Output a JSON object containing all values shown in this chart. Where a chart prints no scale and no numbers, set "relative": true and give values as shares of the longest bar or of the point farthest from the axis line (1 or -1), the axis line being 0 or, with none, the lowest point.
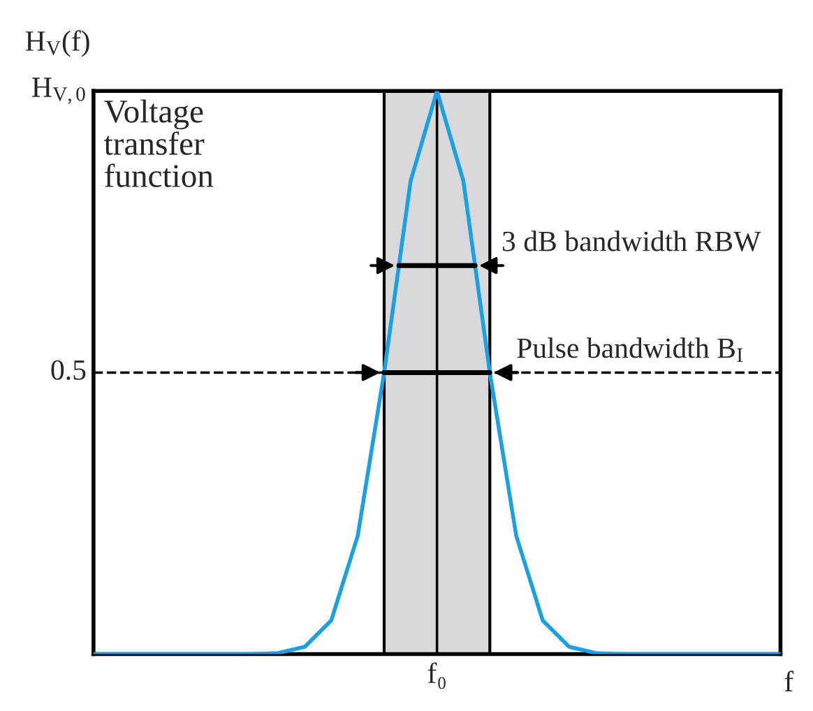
{
  "chart_data": {
    "type": "line",
    "xlabel": "f",
    "ylabel": "H$_{V}$(f)",
    "categories": [
      null,
      null,
      null,
      null,
      null,
      null,
      null,
      null,
      null,
      null,
      null,
      null,
      null,
      null,
      null,
      null,
      null,
      null,
      null,
      null,
      null,
      null,
      null,
      null,
      null,
      null,
      null
    ],
    "series": [
      {
        "color": "#1ba1e2",
        "values": [
          0,
          0,
          0,
          0,
          0,
          0,
          0,
          0.002,
          0.013,
          0.06,
          0.21,
          0.5,
          0.84,
          1,
          0.84,
          0.5,
          0.21,
          0.06,
          0.013,
          0.002,
          0,
          0,
          0,
          0,
          0,
          0,
          0
        ]
      }
    ],
    "relative": true,
    "ref_lines": [
      {
        "axis": "y",
        "value": 1,
        "label": "H$_{V,0}$",
        "color": "#000000",
        "line_style": "solid"
      },
      {
        "axis": "y",
        "value": 0.5,
        "label": "0.5",
        "color": "#000000",
        "line_style": "dashed"
      },
      {
        "axis": "y",
        "value": 0.69,
        "label": "3 dB bandwidth RBW",
        "color": "#000000"
      }
    ],
    "annotations": [
      "Voltage\ntransfer\nfunction",
      "f₀",
      {
        "text": "Pulse bandwidth B$_{I}$",
        "y": 0.5
      }
    ],
    "marker": "none",
    "line_style": "solid"
  }
}
